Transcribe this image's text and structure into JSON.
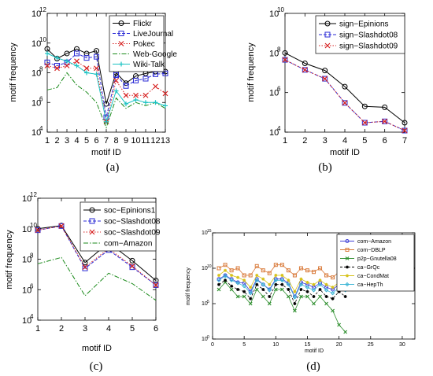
{
  "chart_data": [
    {
      "panel": "a",
      "type": "line",
      "caption": "(a)",
      "xlabel": "motif ID",
      "ylabel": "motif frequency",
      "x": [
        1,
        2,
        3,
        4,
        5,
        6,
        7,
        8,
        9,
        10,
        11,
        12,
        13
      ],
      "xlim": [
        1,
        13
      ],
      "ylim_log10": [
        4,
        12
      ],
      "ytick_labels": [
        "10",
        "10",
        "10",
        "10",
        "10"
      ],
      "ytick_exponents": [
        "4",
        "6",
        "8",
        "10",
        "12"
      ],
      "legend_position": "top-right",
      "series": [
        {
          "name": "Flickr",
          "color": "#000000",
          "dash": "",
          "marker": "circle",
          "values": [
            4000000000.0,
            900000000.0,
            2000000000.0,
            4000000000.0,
            2000000000.0,
            3000000000.0,
            800000.0,
            100000000.0,
            20000000.0,
            60000000.0,
            90000000.0,
            120000000.0,
            120000000.0
          ]
        },
        {
          "name": "LiveJournal",
          "color": "#2a2ad6",
          "dash": "4,2",
          "marker": "square",
          "values": [
            500000000.0,
            300000000.0,
            500000000.0,
            2000000000.0,
            1000000000.0,
            1200000000.0,
            100000.0,
            70000000.0,
            13000000.0,
            30000000.0,
            40000000.0,
            80000000.0,
            90000000.0
          ]
        },
        {
          "name": "Pokec",
          "color": "#d62020",
          "dash": "1.5,2",
          "marker": "x",
          "values": [
            300000000.0,
            200000000.0,
            300000000.0,
            600000000.0,
            200000000.0,
            200000000.0,
            50000.0,
            30000000.0,
            3000000.0,
            3000000.0,
            3000000.0,
            12000000.0,
            4000000.0
          ]
        },
        {
          "name": "Web-Google",
          "color": "#1b8a1b",
          "dash": "6,2,1.5,2",
          "marker": "none",
          "values": [
            7000000.0,
            10000000.0,
            100000000.0,
            15000000.0,
            5000000.0,
            1000000.0,
            20000.0,
            2000000.0,
            400000.0,
            1000000.0,
            600000.0,
            1000000.0,
            400000.0
          ]
        },
        {
          "name": "Wiki-Talk",
          "color": "#19c2c2",
          "dash": "",
          "marker": "plus",
          "values": [
            2000000000.0,
            1000000000.0,
            600000000.0,
            300000000.0,
            100000000.0,
            80000000.0,
            50000.0,
            6000000.0,
            800000.0,
            1500000.0,
            1000000.0,
            1000000.0,
            600000.0
          ]
        }
      ]
    },
    {
      "panel": "b",
      "type": "line",
      "caption": "(b)",
      "xlabel": "motif ID",
      "ylabel": "motif frequency",
      "x": [
        1,
        2,
        3,
        4,
        5,
        6,
        7
      ],
      "xlim": [
        1,
        7
      ],
      "ylim_log10": [
        4,
        10
      ],
      "ytick_labels": [
        "10",
        "10",
        "10",
        "10"
      ],
      "ytick_exponents": [
        "4",
        "6",
        "8",
        "10"
      ],
      "legend_position": "top-right",
      "series": [
        {
          "name": "sign−Epinions",
          "color": "#000000",
          "dash": "",
          "marker": "circle",
          "values": [
            100000000.0,
            30000000.0,
            13000000.0,
            2000000.0,
            200000.0,
            180000.0,
            30000.0
          ]
        },
        {
          "name": "sign−Slashdot08",
          "color": "#2a2ad6",
          "dash": "4,2",
          "marker": "square",
          "values": [
            45000000.0,
            14000000.0,
            5000000.0,
            300000.0,
            30000.0,
            35000.0,
            12000.0
          ]
        },
        {
          "name": "sign−Slashdot09",
          "color": "#d62020",
          "dash": "1.5,2",
          "marker": "x",
          "values": [
            45000000.0,
            14000000.0,
            5000000.0,
            300000.0,
            30000.0,
            35000.0,
            12000.0
          ]
        }
      ]
    },
    {
      "panel": "c",
      "type": "line",
      "caption": "(c)",
      "xlabel": "motif ID",
      "ylabel": "motif frequency",
      "x": [
        1,
        2,
        3,
        4,
        5,
        6
      ],
      "xlim": [
        1,
        6
      ],
      "ylim_log10": [
        4,
        12
      ],
      "ytick_labels": [
        "10",
        "10",
        "10",
        "10",
        "10"
      ],
      "ytick_exponents": [
        "4",
        "6",
        "8",
        "10",
        "12"
      ],
      "legend_position": "top-right",
      "series": [
        {
          "name": "soc−Epinions1",
          "color": "#000000",
          "dash": "",
          "marker": "circle",
          "values": [
            10000000000.0,
            16000000000.0,
            60000000.0,
            1200000000.0,
            80000000.0,
            4000000.0
          ]
        },
        {
          "name": "soc−Slashdot08",
          "color": "#2a2ad6",
          "dash": "4,2",
          "marker": "square",
          "values": [
            8000000000.0,
            15000000000.0,
            25000000.0,
            400000000.0,
            30000000.0,
            2000000.0
          ]
        },
        {
          "name": "soc−Slashdot09",
          "color": "#d62020",
          "dash": "1.5,2",
          "marker": "x",
          "values": [
            8000000000.0,
            15000000000.0,
            30000000.0,
            500000000.0,
            35000000.0,
            2000000.0
          ]
        },
        {
          "name": "com−Amazon",
          "color": "#1b8a1b",
          "dash": "6,2,1.5,2",
          "marker": "none",
          "values": [
            50000000.0,
            130000000.0,
            400000.0,
            12000000.0,
            2500000.0,
            200000.0
          ]
        }
      ]
    },
    {
      "panel": "d",
      "type": "line",
      "caption": "(d)",
      "xlabel": "motif ID",
      "ylabel": "motif frequency",
      "x": [
        1,
        2,
        3,
        4,
        5,
        6,
        7,
        8,
        9,
        10,
        11,
        12,
        13,
        14,
        15,
        16,
        17,
        18,
        19,
        20,
        21
      ],
      "xlim": [
        0,
        32
      ],
      "xtick_values": [
        0,
        5,
        10,
        15,
        20,
        25,
        30
      ],
      "ylim_log10": [
        0,
        15
      ],
      "ytick_labels": [
        "10",
        "10",
        "10",
        "10"
      ],
      "ytick_exponents": [
        "0",
        "5",
        "10",
        "15"
      ],
      "legend_position": "top-right",
      "series": [
        {
          "name": "com−Amazon",
          "color": "#3f3fd6",
          "dash": "",
          "marker": "circle",
          "values": [
            300000000.0,
            1000000000.0,
            300000000.0,
            100000000.0,
            80000000.0,
            5000000.0,
            300000000.0,
            50000000.0,
            10000000.0,
            300000000.0,
            300000000.0,
            80000000.0,
            1000000.0,
            100000000.0,
            50000000.0,
            20000000.0,
            80000000.0,
            20000000.0,
            10000000.0,
            50000000.0,
            30000000.0
          ]
        },
        {
          "name": "com−DBLP",
          "color": "#d97a3a",
          "dash": "",
          "marker": "square",
          "values": [
            10000000000.0,
            30000000000.0,
            5000000000.0,
            10000000000.0,
            1000000000.0,
            1000000000.0,
            20000000000.0,
            5000000000.0,
            2000000000.0,
            30000000000.0,
            30000000000.0,
            5000000000.0,
            1000000000.0,
            10000000000.0,
            5000000000.0,
            3000000000.0,
            10000000000.0,
            1000000000.0,
            500000000.0,
            3000000000.0,
            1000000000.0
          ]
        },
        {
          "name": "p2p−Gnutella08",
          "color": "#2f8f2f",
          "dash": "",
          "marker": "x",
          "values": [
            10000000.0,
            100000000.0,
            10000000.0,
            1000000.0,
            1000000.0,
            100000.0,
            10000000.0,
            1000000.0,
            100000.0,
            10000000.0,
            10000000.0,
            1000000.0,
            10000.0,
            1000000.0,
            1000000.0,
            100000.0,
            1000000.0,
            100000.0,
            10000.0,
            100.0,
            10
          ]
        },
        {
          "name": "ca−GrQc",
          "color": "#000000",
          "dash": "3,2",
          "marker": "star",
          "values": [
            50000000.0,
            200000000.0,
            30000000.0,
            10000000.0,
            5000000.0,
            500000.0,
            50000000.0,
            10000000.0,
            1000000.0,
            50000000.0,
            50000000.0,
            10000000.0,
            100000.0,
            10000000.0,
            5000000.0,
            1000000.0,
            10000000.0,
            1000000.0,
            500000.0,
            5000000.0,
            1000000.0
          ]
        },
        {
          "name": "ca−CondMat",
          "color": "#d6c21a",
          "dash": "",
          "marker": "star",
          "values": [
            1000000000.0,
            5000000000.0,
            1000000000.0,
            500000000.0,
            200000000.0,
            20000000.0,
            1000000000.0,
            300000000.0,
            50000000.0,
            1000000000.0,
            1000000000.0,
            200000000.0,
            5000000.0,
            300000000.0,
            100000000.0,
            50000000.0,
            200000000.0,
            50000000.0,
            20000000.0,
            100000000.0,
            50000000.0
          ]
        },
        {
          "name": "ca−HepTh",
          "color": "#3fb6d6",
          "dash": "",
          "marker": "diamond",
          "values": [
            200000000.0,
            800000000.0,
            200000000.0,
            80000000.0,
            30000000.0,
            3000000.0,
            200000000.0,
            50000000.0,
            8000000.0,
            200000000.0,
            200000000.0,
            50000000.0,
            800000.0,
            50000000.0,
            20000000.0,
            8000000.0,
            50000000.0,
            8000000.0,
            3000000.0,
            20000000.0,
            8000000.0
          ]
        }
      ]
    }
  ]
}
